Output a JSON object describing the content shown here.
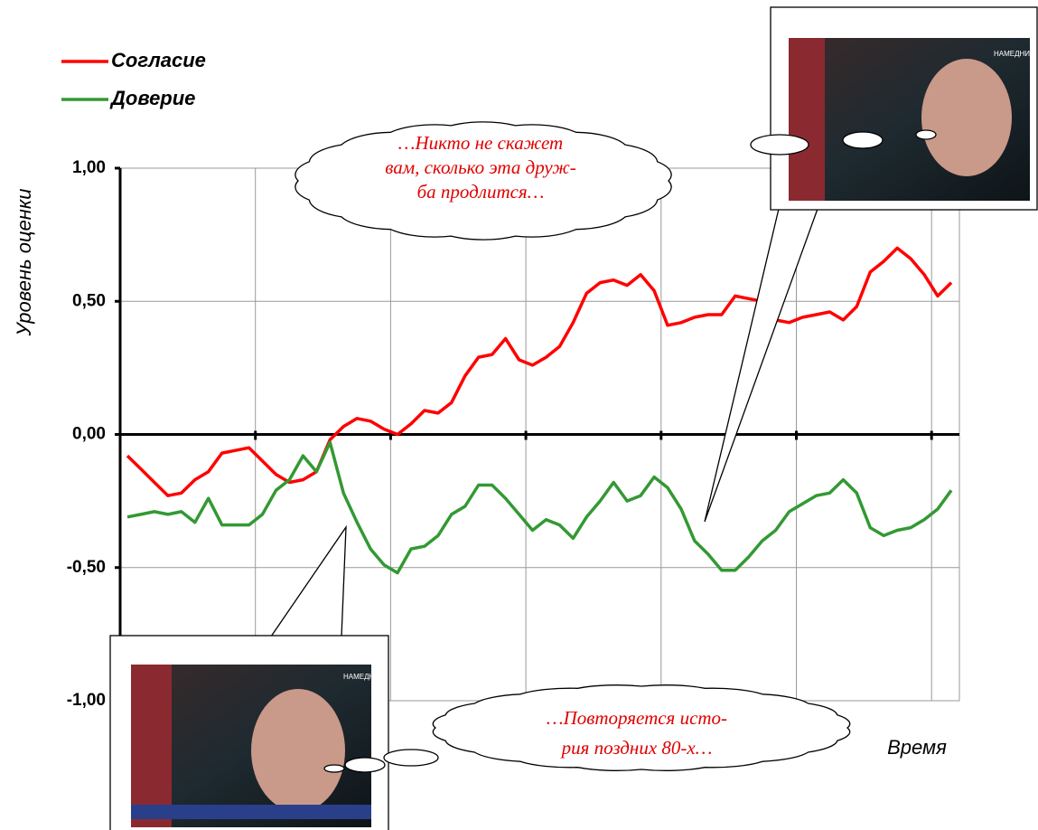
{
  "chart_data": {
    "type": "line",
    "y_label": "Уровень оценки",
    "x_label": "Время",
    "ylim": [
      -1,
      1
    ],
    "yticks": [
      {
        "value": 1,
        "label": "1,00"
      },
      {
        "value": 0.5,
        "label": "0,50"
      },
      {
        "value": 0,
        "label": "0,00"
      },
      {
        "value": -0.5,
        "label": "-0,50"
      },
      {
        "value": -1,
        "label": "-1,00"
      }
    ],
    "grid": true,
    "legend": "top-left",
    "series": [
      {
        "name": "Согласие",
        "color": "#ff0000",
        "values": [
          -0.08,
          -0.13,
          -0.18,
          -0.23,
          -0.22,
          -0.17,
          -0.14,
          -0.07,
          -0.06,
          -0.05,
          -0.1,
          -0.15,
          -0.18,
          -0.17,
          -0.14,
          -0.02,
          0.03,
          0.06,
          0.05,
          0.02,
          0.0,
          0.04,
          0.09,
          0.08,
          0.12,
          0.22,
          0.29,
          0.3,
          0.36,
          0.28,
          0.26,
          0.29,
          0.33,
          0.42,
          0.53,
          0.57,
          0.58,
          0.56,
          0.6,
          0.54,
          0.41,
          0.42,
          0.44,
          0.45,
          0.45,
          0.52,
          0.51,
          0.5,
          0.43,
          0.42,
          0.44,
          0.45,
          0.46,
          0.43,
          0.48,
          0.61,
          0.65,
          0.7,
          0.66,
          0.6,
          0.52,
          0.57
        ]
      },
      {
        "name": "Доверие",
        "color": "#339933",
        "values": [
          -0.31,
          -0.3,
          -0.29,
          -0.3,
          -0.29,
          -0.33,
          -0.24,
          -0.34,
          -0.34,
          -0.34,
          -0.3,
          -0.21,
          -0.17,
          -0.08,
          -0.14,
          -0.03,
          -0.22,
          -0.33,
          -0.43,
          -0.49,
          -0.52,
          -0.43,
          -0.42,
          -0.38,
          -0.3,
          -0.27,
          -0.19,
          -0.19,
          -0.24,
          -0.3,
          -0.36,
          -0.32,
          -0.34,
          -0.39,
          -0.31,
          -0.25,
          -0.18,
          -0.25,
          -0.23,
          -0.16,
          -0.2,
          -0.28,
          -0.4,
          -0.45,
          -0.51,
          -0.51,
          -0.46,
          -0.4,
          -0.36,
          -0.29,
          -0.26,
          -0.23,
          -0.22,
          -0.17,
          -0.22,
          -0.35,
          -0.38,
          -0.36,
          -0.35,
          -0.32,
          -0.28,
          -0.21
        ]
      }
    ],
    "annotations": [
      {
        "lines": [
          "…Никто не скажет",
          "вам, сколько эта друж-",
          "ба продлится…"
        ]
      },
      {
        "lines": [
          "…Повторяется исто-",
          "рия поздних 80-х…"
        ]
      }
    ],
    "photo_captions": [
      "НАМЕДНИ",
      "НАМЕДНИ"
    ]
  }
}
